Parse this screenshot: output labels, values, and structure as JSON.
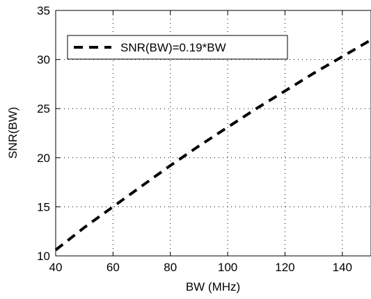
{
  "chart_data": {
    "type": "line",
    "title": "",
    "xlabel": "BW (MHz)",
    "ylabel": "SNR(BW)",
    "xlim": [
      40,
      150
    ],
    "ylim": [
      10,
      35
    ],
    "xticks": [
      40,
      60,
      80,
      100,
      120,
      140
    ],
    "yticks": [
      10,
      15,
      20,
      25,
      30,
      35
    ],
    "grid": true,
    "legend": {
      "position": "top-left",
      "entries": [
        "SNR(BW)=0.19*BW"
      ]
    },
    "series": [
      {
        "name": "SNR(BW)=0.19*BW",
        "style": "dashed",
        "color": "#000000",
        "x": [
          40,
          50,
          60,
          70,
          80,
          90,
          100,
          110,
          120,
          130,
          140,
          150
        ],
        "y": [
          10.6,
          12.9,
          15.0,
          17.1,
          19.2,
          21.2,
          23.1,
          25.0,
          26.8,
          28.6,
          30.3,
          32.0
        ]
      }
    ]
  }
}
